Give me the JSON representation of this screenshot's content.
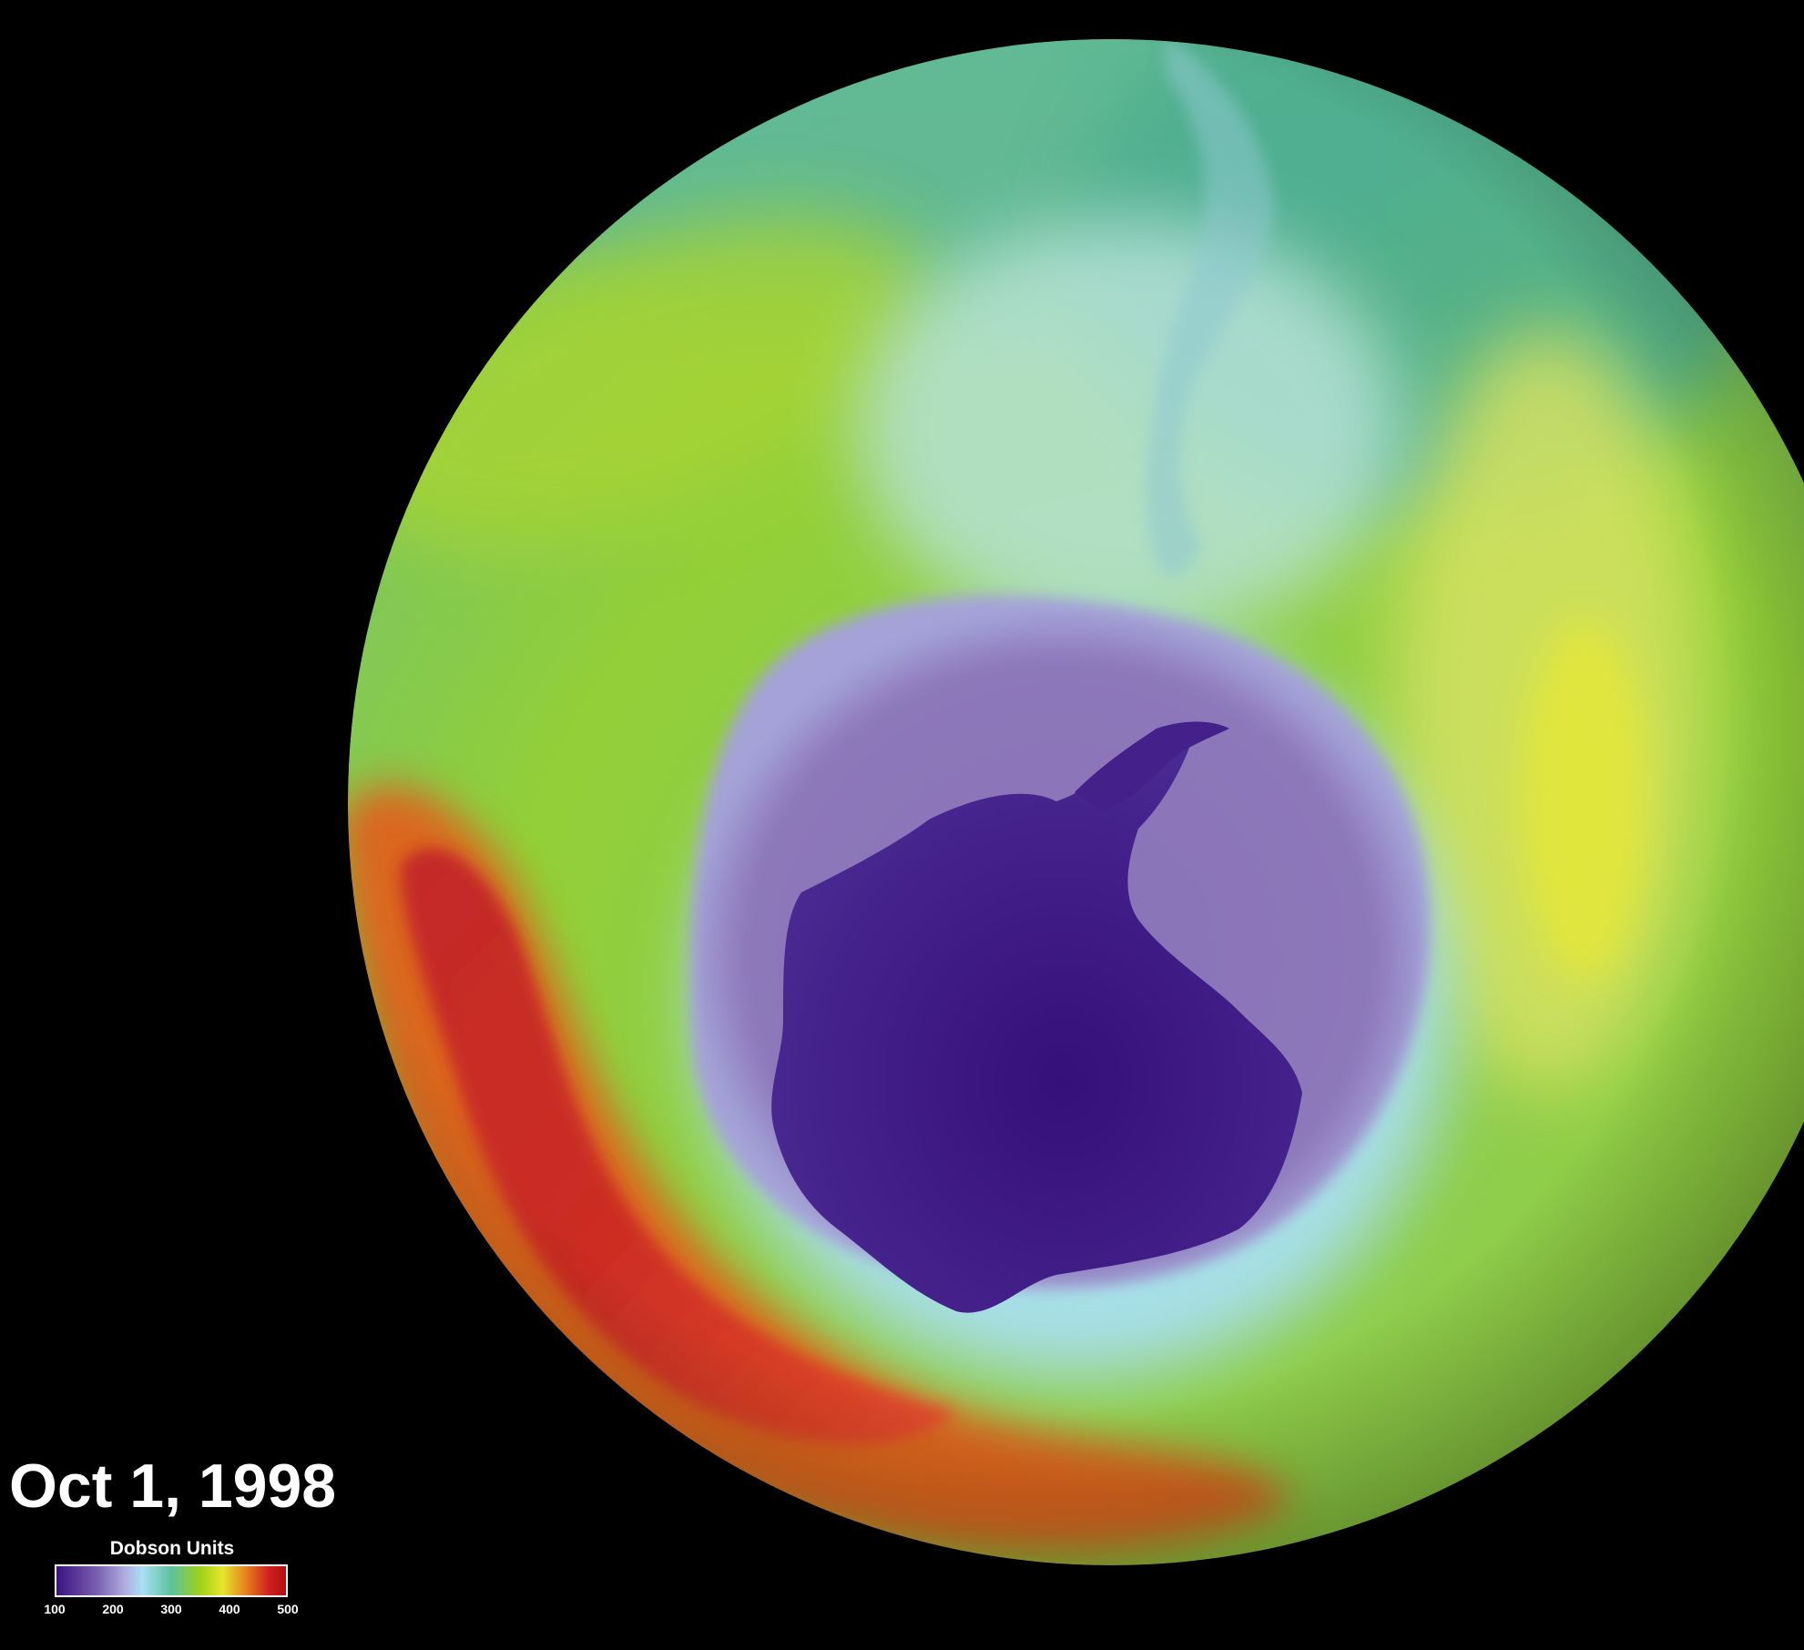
{
  "date_label": "Oct 1, 1998",
  "legend": {
    "title": "Dobson Units",
    "min": 100,
    "max": 500,
    "ticks": [
      {
        "value": 100,
        "label": "100"
      },
      {
        "value": 200,
        "label": "200"
      },
      {
        "value": 300,
        "label": "300"
      },
      {
        "value": 400,
        "label": "400"
      },
      {
        "value": 500,
        "label": "500"
      }
    ],
    "color_stops": [
      {
        "value": 100,
        "color": "#3a1480"
      },
      {
        "value": 170,
        "color": "#7a5eb0"
      },
      {
        "value": 220,
        "color": "#b0aee0"
      },
      {
        "value": 250,
        "color": "#a8e0f6"
      },
      {
        "value": 300,
        "color": "#5cc29a"
      },
      {
        "value": 350,
        "color": "#9ed11a"
      },
      {
        "value": 390,
        "color": "#e5e62a"
      },
      {
        "value": 430,
        "color": "#e8821e"
      },
      {
        "value": 470,
        "color": "#d02020"
      },
      {
        "value": 500,
        "color": "#b01010"
      }
    ]
  },
  "colors": {
    "background": "#000000",
    "hole_core": "#3d1582",
    "hole_outer": "#8a73b8",
    "hole_edge": "#a9def4",
    "mid_latitude": "#8ccd3a",
    "high_ozone": "#c8282a"
  },
  "icons": {
    "globe": "earth-south-pole-globe-icon"
  }
}
